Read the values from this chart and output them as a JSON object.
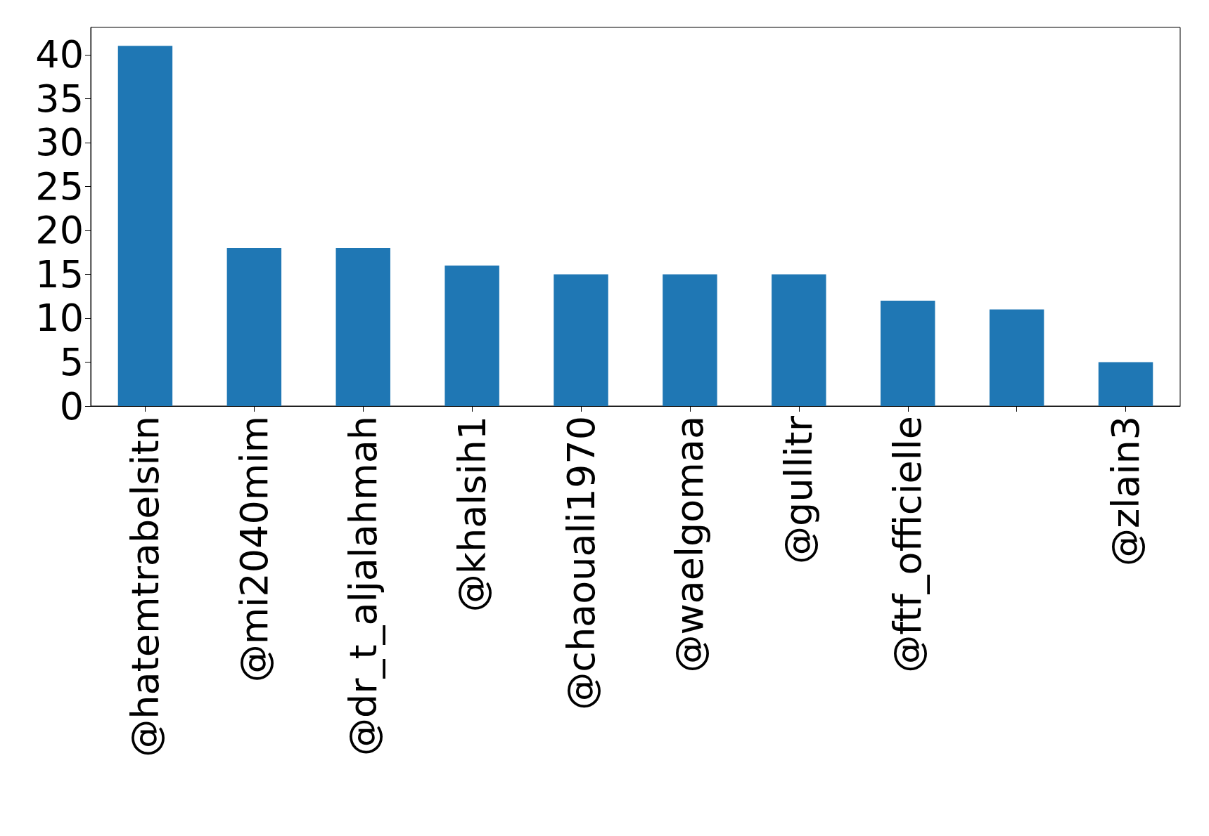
{
  "chart_data": {
    "type": "bar",
    "categories": [
      "@hatemtrabelsitn",
      "@mi2040mim",
      "@dr_t_aljalahmah",
      "@khalsih1",
      "@chaouali1970",
      "@waelgomaa",
      "@gullitr",
      "@ftf_officielle",
      null,
      "@zlain3"
    ],
    "values": [
      41,
      18,
      18,
      16,
      15,
      15,
      15,
      12,
      11,
      5
    ],
    "color": "#1f77b4",
    "ylim": [
      0,
      43.1
    ],
    "yticks": [
      0,
      5,
      10,
      15,
      20,
      25,
      30,
      35,
      40
    ],
    "grid": false
  }
}
